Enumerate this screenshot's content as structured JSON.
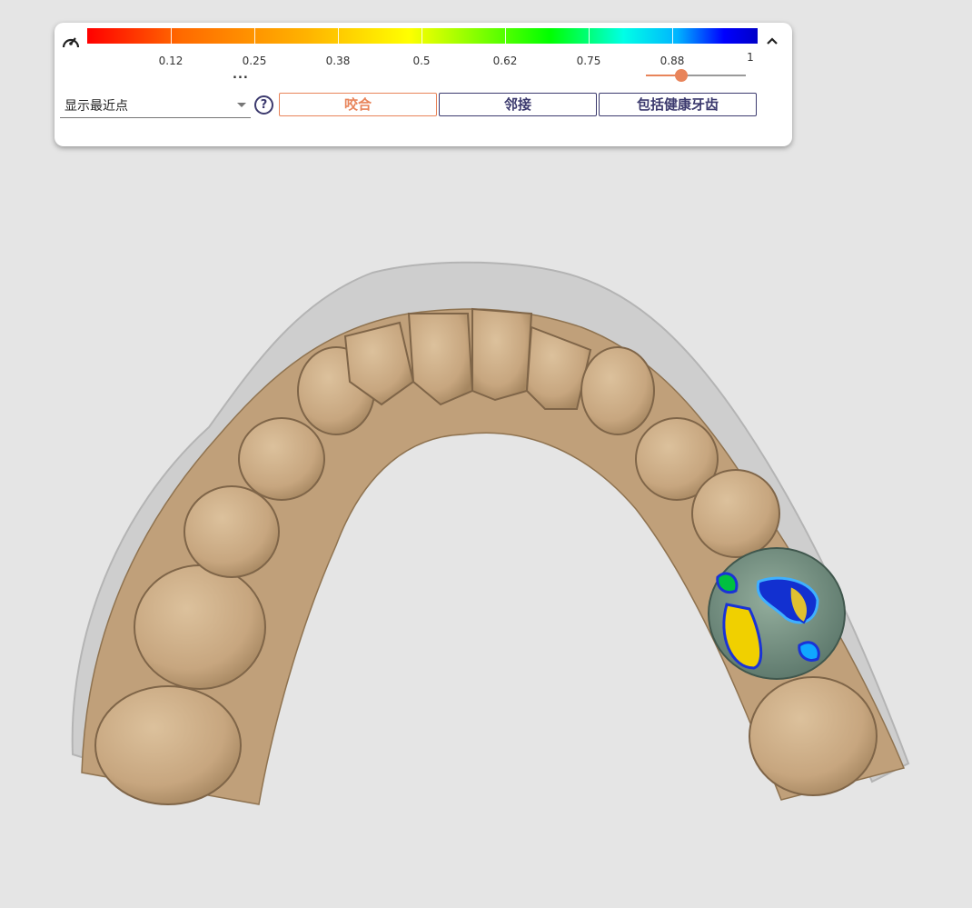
{
  "toolbar": {
    "colorbar_ticks": [
      "0.12",
      "0.25",
      "0.38",
      "0.5",
      "0.62",
      "0.75",
      "0.88",
      "1"
    ],
    "more_label": "...",
    "display_mode": {
      "selected": "显示最近点"
    },
    "help_label": "?",
    "buttons": {
      "occlusion": "咬合",
      "adjacent": "邻接",
      "include_healthy": "包括健康牙齿"
    },
    "slider_value": 0.35
  },
  "icons": {
    "gauge": "gauge-icon",
    "collapse": "chevron-up-icon",
    "help": "help-circle-icon"
  },
  "colors": {
    "accent": "#e8845a",
    "primary": "#3c3a6e",
    "tooth": "#cfb08a"
  }
}
